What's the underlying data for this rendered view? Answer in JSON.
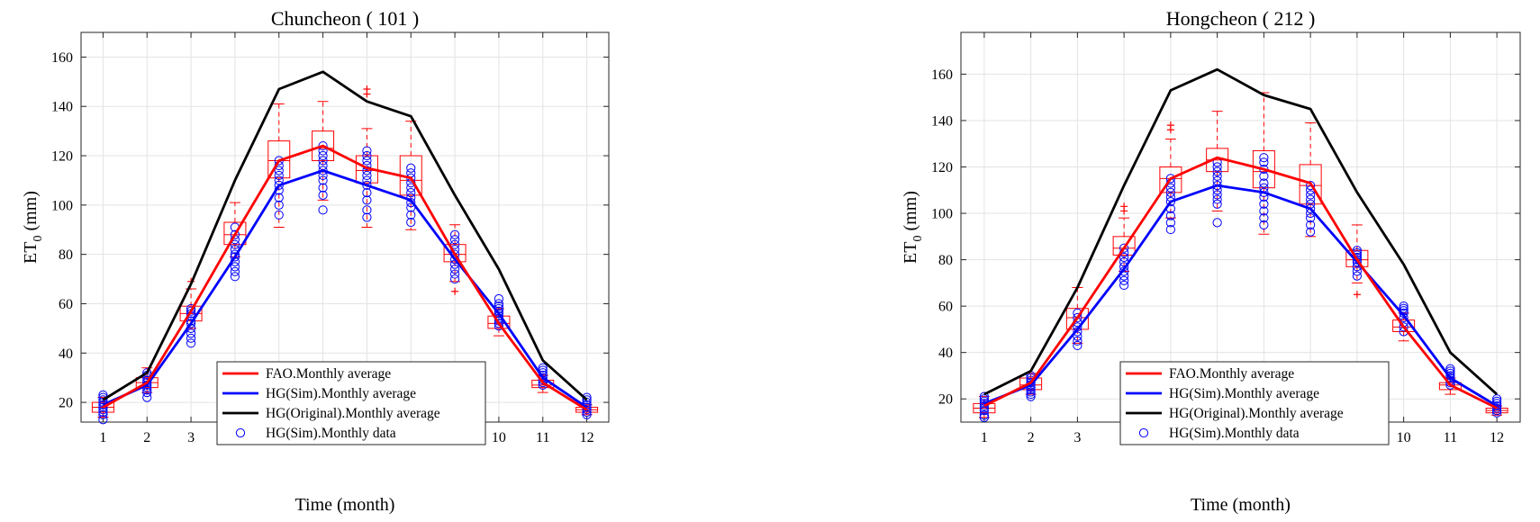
{
  "chart_data": [
    {
      "type": "line",
      "title": "Chuncheon ( 101 )",
      "xlabel": "Time (month)",
      "ylabel": "ET",
      "ylabel_sub": "0",
      "ylabel_unit": " (mm)",
      "x": [
        1,
        2,
        3,
        4,
        5,
        6,
        7,
        8,
        9,
        10,
        11,
        12
      ],
      "xlim": [
        0.5,
        12.5
      ],
      "ylim": [
        12,
        170
      ],
      "yticks": [
        20,
        40,
        60,
        80,
        100,
        120,
        140,
        160
      ],
      "grid": true,
      "legend_position": "bottom-center",
      "series": [
        {
          "name": "FAO.Monthly average",
          "color": "#ff0000",
          "values": [
            18,
            28,
            57,
            88,
            118,
            124,
            115,
            111,
            80,
            52,
            28,
            17
          ]
        },
        {
          "name": "HG(Sim).Monthly average",
          "color": "#0000ff",
          "values": [
            19,
            27,
            52,
            79,
            108,
            114,
            108,
            102,
            78,
            56,
            30,
            18
          ]
        },
        {
          "name": "HG(Original).Monthly average",
          "color": "#000000",
          "values": [
            21,
            32,
            68,
            110,
            147,
            154,
            142,
            136,
            104,
            74,
            37,
            21
          ]
        },
        {
          "name": "HG(Sim).Monthly data",
          "color": "#0000ff",
          "marker": "circle"
        }
      ],
      "boxplots": [
        {
          "x": 1,
          "q1": 16,
          "med": 18,
          "q3": 20,
          "wlo": 14,
          "whi": 22,
          "out": []
        },
        {
          "x": 2,
          "q1": 26,
          "med": 28,
          "q3": 30,
          "wlo": 24,
          "whi": 34,
          "out": []
        },
        {
          "x": 3,
          "q1": 53,
          "med": 56,
          "q3": 59,
          "wlo": 50,
          "whi": 66,
          "out": [
            69
          ]
        },
        {
          "x": 4,
          "q1": 84,
          "med": 88,
          "q3": 93,
          "wlo": 79,
          "whi": 101,
          "out": []
        },
        {
          "x": 5,
          "q1": 111,
          "med": 118,
          "q3": 126,
          "wlo": 91,
          "whi": 141,
          "out": []
        },
        {
          "x": 6,
          "q1": 118,
          "med": 123,
          "q3": 130,
          "wlo": 102,
          "whi": 142,
          "out": []
        },
        {
          "x": 7,
          "q1": 109,
          "med": 114,
          "q3": 120,
          "wlo": 91,
          "whi": 131,
          "out": [
            145,
            147
          ]
        },
        {
          "x": 8,
          "q1": 104,
          "med": 110,
          "q3": 120,
          "wlo": 90,
          "whi": 134,
          "out": []
        },
        {
          "x": 9,
          "q1": 77,
          "med": 80,
          "q3": 84,
          "wlo": 69,
          "whi": 92,
          "out": [
            65
          ]
        },
        {
          "x": 10,
          "q1": 50,
          "med": 52,
          "q3": 55,
          "wlo": 47,
          "whi": 58,
          "out": []
        },
        {
          "x": 11,
          "q1": 26,
          "med": 27,
          "q3": 29,
          "wlo": 24,
          "whi": 31,
          "out": []
        },
        {
          "x": 12,
          "q1": 16,
          "med": 17,
          "q3": 18,
          "wlo": 15,
          "whi": 19,
          "out": []
        }
      ],
      "monthly_data": [
        [
          13,
          15,
          16,
          17,
          18,
          19,
          20,
          21,
          22,
          23
        ],
        [
          22,
          24,
          25,
          26,
          27,
          28,
          29,
          30,
          31,
          32
        ],
        [
          44,
          46,
          48,
          50,
          52,
          53,
          55,
          56,
          57,
          58
        ],
        [
          71,
          73,
          75,
          77,
          79,
          80,
          82,
          84,
          86,
          88,
          91
        ],
        [
          96,
          100,
          103,
          106,
          108,
          110,
          112,
          114,
          116,
          118
        ],
        [
          98,
          104,
          107,
          110,
          112,
          114,
          116,
          118,
          120,
          122,
          124
        ],
        [
          95,
          98,
          102,
          105,
          108,
          110,
          112,
          114,
          116,
          118,
          120,
          122
        ],
        [
          93,
          96,
          99,
          101,
          103,
          105,
          107,
          109,
          111,
          113,
          115
        ],
        [
          70,
          72,
          74,
          76,
          78,
          80,
          82,
          84,
          86,
          88
        ],
        [
          51,
          52,
          53,
          54,
          55,
          56,
          57,
          58,
          59,
          60,
          62
        ],
        [
          27,
          28,
          29,
          30,
          31,
          32,
          33,
          34
        ],
        [
          15,
          16,
          17,
          18,
          19,
          20,
          21,
          22
        ]
      ]
    },
    {
      "type": "line",
      "title": "Hongcheon ( 212 )",
      "xlabel": "Time (month)",
      "ylabel": "ET",
      "ylabel_sub": "0",
      "ylabel_unit": " (mm)",
      "x": [
        1,
        2,
        3,
        4,
        5,
        6,
        7,
        8,
        9,
        10,
        11,
        12
      ],
      "xlim": [
        0.5,
        12.5
      ],
      "ylim": [
        10,
        178
      ],
      "yticks": [
        20,
        40,
        60,
        80,
        100,
        120,
        140,
        160
      ],
      "grid": true,
      "legend_position": "bottom-center",
      "series": [
        {
          "name": "FAO.Monthly average",
          "color": "#ff0000",
          "values": [
            17,
            27,
            55,
            85,
            115,
            124,
            119,
            113,
            80,
            51,
            26,
            16
          ]
        },
        {
          "name": "HG(Sim).Monthly average",
          "color": "#0000ff",
          "values": [
            18,
            26,
            50,
            76,
            105,
            112,
            109,
            102,
            79,
            56,
            29,
            17
          ]
        },
        {
          "name": "HG(Original).Monthly average",
          "color": "#000000",
          "values": [
            22,
            32,
            68,
            112,
            153,
            162,
            151,
            145,
            109,
            78,
            40,
            22
          ]
        },
        {
          "name": "HG(Sim).Monthly data",
          "color": "#0000ff",
          "marker": "circle"
        }
      ],
      "boxplots": [
        {
          "x": 1,
          "q1": 14,
          "med": 16,
          "q3": 18,
          "wlo": 12,
          "whi": 21,
          "out": []
        },
        {
          "x": 2,
          "q1": 24,
          "med": 26,
          "q3": 29,
          "wlo": 22,
          "whi": 31,
          "out": []
        },
        {
          "x": 3,
          "q1": 50,
          "med": 55,
          "q3": 59,
          "wlo": 44,
          "whi": 68,
          "out": []
        },
        {
          "x": 4,
          "q1": 82,
          "med": 85,
          "q3": 90,
          "wlo": 75,
          "whi": 98,
          "out": [
            101,
            103
          ]
        },
        {
          "x": 5,
          "q1": 109,
          "med": 115,
          "q3": 120,
          "wlo": 98,
          "whi": 132,
          "out": [
            136,
            138
          ]
        },
        {
          "x": 6,
          "q1": 118,
          "med": 123,
          "q3": 128,
          "wlo": 101,
          "whi": 144,
          "out": []
        },
        {
          "x": 7,
          "q1": 111,
          "med": 118,
          "q3": 127,
          "wlo": 91,
          "whi": 152,
          "out": []
        },
        {
          "x": 8,
          "q1": 104,
          "med": 112,
          "q3": 121,
          "wlo": 90,
          "whi": 139,
          "out": []
        },
        {
          "x": 9,
          "q1": 77,
          "med": 80,
          "q3": 84,
          "wlo": 70,
          "whi": 95,
          "out": [
            65
          ]
        },
        {
          "x": 10,
          "q1": 49,
          "med": 51,
          "q3": 54,
          "wlo": 45,
          "whi": 57,
          "out": []
        },
        {
          "x": 11,
          "q1": 24,
          "med": 26,
          "q3": 27,
          "wlo": 22,
          "whi": 29,
          "out": []
        },
        {
          "x": 12,
          "q1": 14,
          "med": 15,
          "q3": 16,
          "wlo": 13,
          "whi": 17,
          "out": []
        }
      ],
      "monthly_data": [
        [
          12,
          13,
          15,
          16,
          17,
          18,
          19,
          20,
          21
        ],
        [
          21,
          22,
          23,
          24,
          25,
          26,
          27,
          28,
          29,
          30
        ],
        [
          43,
          45,
          47,
          49,
          51,
          53,
          55,
          57
        ],
        [
          69,
          71,
          73,
          75,
          77,
          79,
          81,
          83,
          85
        ],
        [
          93,
          96,
          99,
          102,
          105,
          107,
          109,
          111,
          113,
          115
        ],
        [
          96,
          104,
          106,
          108,
          110,
          112,
          114,
          116,
          118,
          120,
          122
        ],
        [
          95,
          98,
          101,
          104,
          107,
          109,
          111,
          113,
          116,
          119,
          122,
          124
        ],
        [
          92,
          95,
          98,
          100,
          102,
          104,
          106,
          108,
          110,
          112
        ],
        [
          73,
          75,
          77,
          79,
          80,
          81,
          82,
          83,
          84
        ],
        [
          49,
          51,
          53,
          55,
          57,
          58,
          59,
          60
        ],
        [
          26,
          27,
          28,
          29,
          30,
          31,
          32,
          33
        ],
        [
          14,
          15,
          16,
          17,
          18,
          19,
          20
        ]
      ]
    }
  ]
}
